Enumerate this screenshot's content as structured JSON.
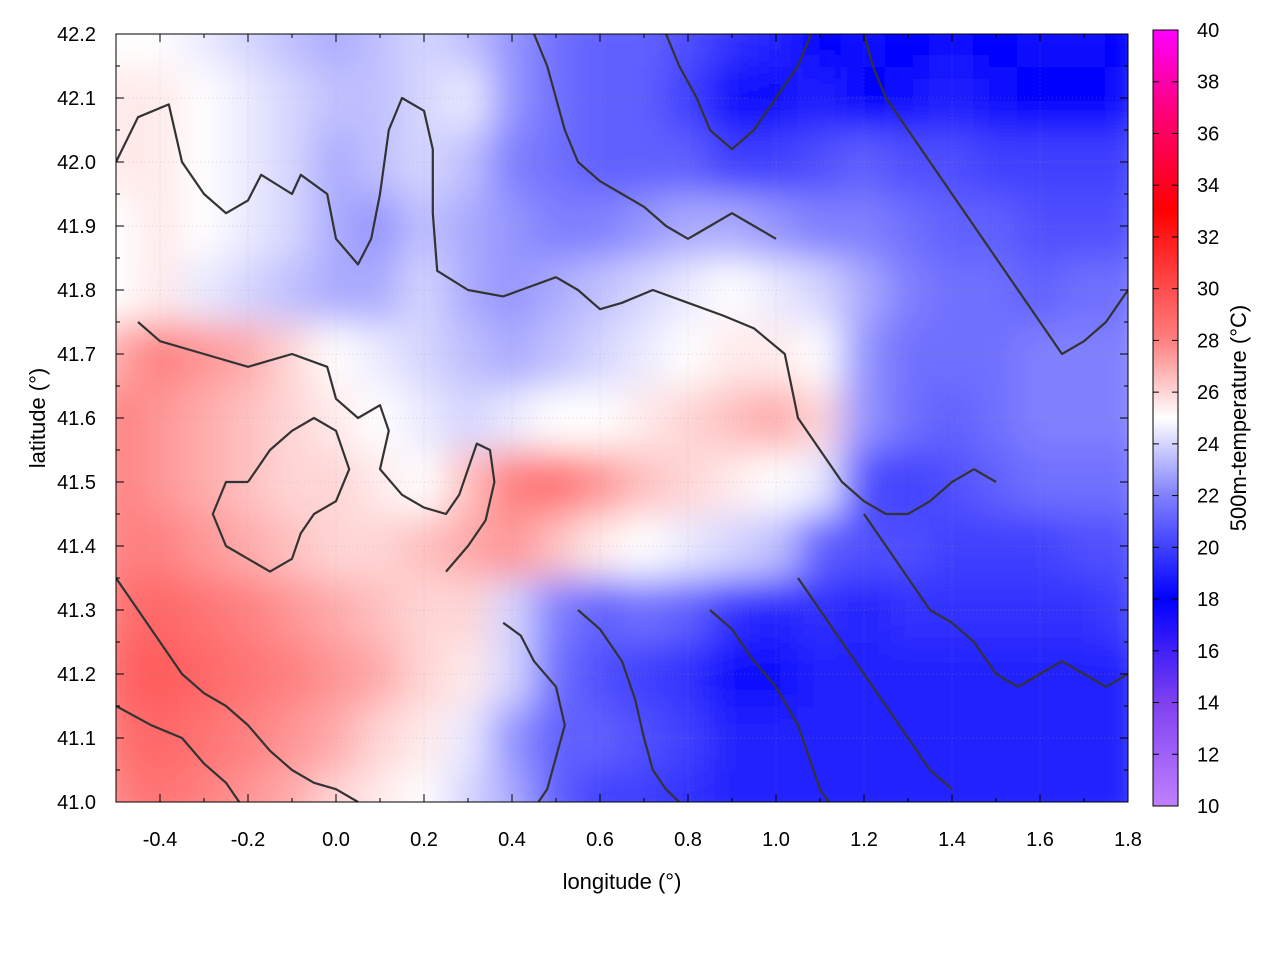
{
  "chart_data": {
    "type": "heatmap",
    "title": "",
    "xlabel": "longitude (°)",
    "ylabel": "latitude (°)",
    "colorbar_label": "500m-temperature (°C)",
    "xlim": [
      -0.5,
      1.8
    ],
    "ylim": [
      41.0,
      42.2
    ],
    "xticks": [
      "-0.4",
      "-0.2",
      "0.0",
      "0.2",
      "0.4",
      "0.6",
      "0.8",
      "1.0",
      "1.2",
      "1.4",
      "1.6",
      "1.8"
    ],
    "yticks": [
      "41.0",
      "41.1",
      "41.2",
      "41.3",
      "41.4",
      "41.5",
      "41.6",
      "41.7",
      "41.8",
      "41.9",
      "42.0",
      "42.1",
      "42.2"
    ],
    "cbrange": [
      10,
      40
    ],
    "cbticks": [
      "10",
      "12",
      "14",
      "16",
      "18",
      "20",
      "22",
      "24",
      "26",
      "28",
      "30",
      "32",
      "34",
      "36",
      "38",
      "40"
    ],
    "colormap": [
      {
        "value": 10,
        "color": "#c080ff"
      },
      {
        "value": 14,
        "color": "#8040f0"
      },
      {
        "value": 18,
        "color": "#0000ff"
      },
      {
        "value": 22,
        "color": "#8080ff"
      },
      {
        "value": 25,
        "color": "#ffffff"
      },
      {
        "value": 28,
        "color": "#ff8080"
      },
      {
        "value": 33,
        "color": "#ff0000"
      },
      {
        "value": 37,
        "color": "#ff0080"
      },
      {
        "value": 40,
        "color": "#ff00ff"
      }
    ],
    "temperature_field": {
      "x": [
        -0.5,
        -0.4,
        -0.3,
        -0.2,
        -0.1,
        0.0,
        0.1,
        0.2,
        0.3,
        0.4,
        0.5,
        0.6,
        0.7,
        0.8,
        0.9,
        1.0,
        1.1,
        1.2,
        1.3,
        1.4,
        1.5,
        1.6,
        1.7,
        1.8
      ],
      "y": [
        41.0,
        41.1,
        41.2,
        41.3,
        41.4,
        41.5,
        41.6,
        41.7,
        41.8,
        41.9,
        42.0,
        42.1,
        42.2
      ],
      "values": [
        [
          28.0,
          28.5,
          28.0,
          27.5,
          27.0,
          26.0,
          25.5,
          25.0,
          24.0,
          23.0,
          21.0,
          20.0,
          20.0,
          19.5,
          19.0,
          19.0,
          19.0,
          19.0,
          19.0,
          19.0,
          19.0,
          19.0,
          19.0,
          19.0
        ],
        [
          28.5,
          29.0,
          28.5,
          28.0,
          27.5,
          27.0,
          26.0,
          25.5,
          24.5,
          22.5,
          21.0,
          21.0,
          20.5,
          20.0,
          19.0,
          19.0,
          19.0,
          19.0,
          19.0,
          19.0,
          19.0,
          19.0,
          19.0,
          19.0
        ],
        [
          29.0,
          29.5,
          29.0,
          28.5,
          28.0,
          27.5,
          27.0,
          26.0,
          25.5,
          24.0,
          21.5,
          20.5,
          20.0,
          19.5,
          18.5,
          18.5,
          19.0,
          19.0,
          19.0,
          19.0,
          19.0,
          19.0,
          19.0,
          19.0
        ],
        [
          28.5,
          29.0,
          28.5,
          28.0,
          27.5,
          27.0,
          26.5,
          26.0,
          26.0,
          24.0,
          22.0,
          21.0,
          21.5,
          21.0,
          19.5,
          19.0,
          19.5,
          19.0,
          19.5,
          19.5,
          19.5,
          19.5,
          19.5,
          20.0
        ],
        [
          28.0,
          28.0,
          27.5,
          27.0,
          26.5,
          26.0,
          26.0,
          26.5,
          27.0,
          27.5,
          26.5,
          25.5,
          25.0,
          24.5,
          24.0,
          23.5,
          21.0,
          20.5,
          20.5,
          20.0,
          20.0,
          20.0,
          20.5,
          20.5
        ],
        [
          28.0,
          27.5,
          27.0,
          26.5,
          26.0,
          26.0,
          25.5,
          25.0,
          26.5,
          28.0,
          28.5,
          27.5,
          26.5,
          26.0,
          25.5,
          25.0,
          24.5,
          20.5,
          20.0,
          20.5,
          21.0,
          21.5,
          21.5,
          21.5
        ],
        [
          28.0,
          27.5,
          27.0,
          26.5,
          26.0,
          25.5,
          25.0,
          24.5,
          24.0,
          24.5,
          25.0,
          25.0,
          25.5,
          26.0,
          26.5,
          27.0,
          26.0,
          22.5,
          21.5,
          21.0,
          21.5,
          22.0,
          22.0,
          22.0
        ],
        [
          27.0,
          28.0,
          27.5,
          27.0,
          26.0,
          25.0,
          24.5,
          24.0,
          23.5,
          23.0,
          23.5,
          24.0,
          24.5,
          25.0,
          25.5,
          25.5,
          25.0,
          22.5,
          21.5,
          21.5,
          21.5,
          22.0,
          22.0,
          22.0
        ],
        [
          25.0,
          25.5,
          24.5,
          24.0,
          23.5,
          23.0,
          23.0,
          24.0,
          23.0,
          22.5,
          23.0,
          23.5,
          24.0,
          24.5,
          25.0,
          24.5,
          24.0,
          23.0,
          22.0,
          21.5,
          21.5,
          21.0,
          21.5,
          21.5
        ],
        [
          25.0,
          25.5,
          25.0,
          24.5,
          24.0,
          23.0,
          22.5,
          23.5,
          23.0,
          22.5,
          22.0,
          22.0,
          22.5,
          23.0,
          23.0,
          22.5,
          22.0,
          22.0,
          21.5,
          21.0,
          21.0,
          20.5,
          20.5,
          20.5
        ],
        [
          25.5,
          25.5,
          25.0,
          24.5,
          24.0,
          23.0,
          23.5,
          24.0,
          23.5,
          22.0,
          21.5,
          21.0,
          21.0,
          21.0,
          20.0,
          20.0,
          20.5,
          21.0,
          20.5,
          20.5,
          20.0,
          20.0,
          20.0,
          20.0
        ],
        [
          25.5,
          25.5,
          25.0,
          24.5,
          24.0,
          23.5,
          23.5,
          24.0,
          24.5,
          22.5,
          21.5,
          21.0,
          21.0,
          20.0,
          18.5,
          18.5,
          19.0,
          18.0,
          18.5,
          19.0,
          18.5,
          18.0,
          18.0,
          18.5
        ],
        [
          25.0,
          25.0,
          24.5,
          24.0,
          23.5,
          23.0,
          23.5,
          24.0,
          23.5,
          22.5,
          21.5,
          21.0,
          21.0,
          20.5,
          19.5,
          19.0,
          18.0,
          17.5,
          18.0,
          18.5,
          18.0,
          17.5,
          17.5,
          18.0
        ]
      ]
    },
    "contour_lines": [
      [
        [
          -0.5,
          42.0
        ],
        [
          -0.45,
          42.07
        ],
        [
          -0.38,
          42.09
        ],
        [
          -0.35,
          42.0
        ],
        [
          -0.3,
          41.95
        ],
        [
          -0.25,
          41.92
        ],
        [
          -0.2,
          41.94
        ],
        [
          -0.17,
          41.98
        ],
        [
          -0.1,
          41.95
        ],
        [
          -0.08,
          41.98
        ],
        [
          -0.02,
          41.95
        ],
        [
          0.0,
          41.88
        ],
        [
          0.05,
          41.84
        ],
        [
          0.08,
          41.88
        ],
        [
          0.1,
          41.95
        ],
        [
          0.12,
          42.05
        ],
        [
          0.15,
          42.1
        ],
        [
          0.2,
          42.08
        ],
        [
          0.22,
          42.02
        ],
        [
          0.22,
          41.92
        ],
        [
          0.23,
          41.83
        ],
        [
          0.3,
          41.8
        ],
        [
          0.38,
          41.79
        ],
        [
          0.42,
          41.8
        ],
        [
          0.5,
          41.82
        ],
        [
          0.55,
          41.8
        ],
        [
          0.6,
          41.77
        ],
        [
          0.65,
          41.78
        ],
        [
          0.72,
          41.8
        ],
        [
          0.8,
          41.78
        ],
        [
          0.88,
          41.76
        ],
        [
          0.95,
          41.74
        ],
        [
          1.02,
          41.7
        ],
        [
          1.05,
          41.6
        ],
        [
          1.1,
          41.55
        ],
        [
          1.15,
          41.5
        ],
        [
          1.2,
          41.47
        ],
        [
          1.25,
          41.45
        ],
        [
          1.3,
          41.45
        ],
        [
          1.35,
          41.47
        ],
        [
          1.4,
          41.5
        ],
        [
          1.45,
          41.52
        ],
        [
          1.5,
          41.5
        ]
      ],
      [
        [
          -0.45,
          41.75
        ],
        [
          -0.4,
          41.72
        ],
        [
          -0.3,
          41.7
        ],
        [
          -0.2,
          41.68
        ],
        [
          -0.1,
          41.7
        ],
        [
          -0.02,
          41.68
        ],
        [
          0.0,
          41.63
        ],
        [
          0.05,
          41.6
        ],
        [
          0.1,
          41.62
        ],
        [
          0.12,
          41.58
        ],
        [
          0.1,
          41.52
        ],
        [
          0.15,
          41.48
        ],
        [
          0.2,
          41.46
        ],
        [
          0.25,
          41.45
        ],
        [
          0.28,
          41.48
        ],
        [
          0.3,
          41.52
        ],
        [
          0.32,
          41.56
        ],
        [
          0.35,
          41.55
        ],
        [
          0.36,
          41.5
        ],
        [
          0.34,
          41.44
        ],
        [
          0.3,
          41.4
        ],
        [
          0.25,
          41.36
        ]
      ],
      [
        [
          -0.2,
          41.5
        ],
        [
          -0.15,
          41.55
        ],
        [
          -0.1,
          41.58
        ],
        [
          -0.05,
          41.6
        ],
        [
          0.0,
          41.58
        ],
        [
          0.03,
          41.52
        ],
        [
          0.0,
          41.47
        ],
        [
          -0.05,
          41.45
        ],
        [
          -0.08,
          41.42
        ],
        [
          -0.1,
          41.38
        ],
        [
          -0.15,
          41.36
        ],
        [
          -0.2,
          41.38
        ],
        [
          -0.25,
          41.4
        ],
        [
          -0.28,
          41.45
        ],
        [
          -0.25,
          41.5
        ],
        [
          -0.2,
          41.5
        ]
      ],
      [
        [
          -0.5,
          41.35
        ],
        [
          -0.45,
          41.3
        ],
        [
          -0.4,
          41.25
        ],
        [
          -0.35,
          41.2
        ],
        [
          -0.3,
          41.17
        ],
        [
          -0.25,
          41.15
        ],
        [
          -0.2,
          41.12
        ],
        [
          -0.15,
          41.08
        ],
        [
          -0.1,
          41.05
        ],
        [
          -0.05,
          41.03
        ],
        [
          0.0,
          41.02
        ],
        [
          0.05,
          41.0
        ]
      ],
      [
        [
          -0.5,
          41.15
        ],
        [
          -0.42,
          41.12
        ],
        [
          -0.35,
          41.1
        ],
        [
          -0.3,
          41.06
        ],
        [
          -0.25,
          41.03
        ],
        [
          -0.22,
          41.0
        ]
      ],
      [
        [
          0.38,
          41.28
        ],
        [
          0.42,
          41.26
        ],
        [
          0.45,
          41.22
        ],
        [
          0.5,
          41.18
        ],
        [
          0.52,
          41.12
        ],
        [
          0.5,
          41.07
        ],
        [
          0.48,
          41.02
        ],
        [
          0.46,
          41.0
        ]
      ],
      [
        [
          0.55,
          41.3
        ],
        [
          0.6,
          41.27
        ],
        [
          0.65,
          41.22
        ],
        [
          0.68,
          41.16
        ],
        [
          0.7,
          41.1
        ],
        [
          0.72,
          41.05
        ],
        [
          0.75,
          41.02
        ],
        [
          0.78,
          41.0
        ]
      ],
      [
        [
          0.85,
          41.3
        ],
        [
          0.9,
          41.27
        ],
        [
          0.95,
          41.22
        ],
        [
          1.0,
          41.18
        ],
        [
          1.05,
          41.12
        ],
        [
          1.08,
          41.06
        ],
        [
          1.1,
          41.02
        ],
        [
          1.12,
          41.0
        ]
      ],
      [
        [
          1.05,
          41.35
        ],
        [
          1.1,
          41.3
        ],
        [
          1.15,
          41.25
        ],
        [
          1.2,
          41.2
        ],
        [
          1.25,
          41.15
        ],
        [
          1.3,
          41.1
        ],
        [
          1.35,
          41.05
        ],
        [
          1.4,
          41.02
        ]
      ],
      [
        [
          1.2,
          41.45
        ],
        [
          1.25,
          41.4
        ],
        [
          1.3,
          41.35
        ],
        [
          1.35,
          41.3
        ],
        [
          1.4,
          41.28
        ],
        [
          1.45,
          41.25
        ],
        [
          1.5,
          41.2
        ],
        [
          1.55,
          41.18
        ],
        [
          1.6,
          41.2
        ],
        [
          1.65,
          41.22
        ],
        [
          1.7,
          41.2
        ],
        [
          1.75,
          41.18
        ],
        [
          1.8,
          41.2
        ]
      ],
      [
        [
          0.75,
          42.2
        ],
        [
          0.78,
          42.15
        ],
        [
          0.82,
          42.1
        ],
        [
          0.85,
          42.05
        ],
        [
          0.9,
          42.02
        ],
        [
          0.95,
          42.05
        ],
        [
          1.0,
          42.1
        ],
        [
          1.05,
          42.15
        ],
        [
          1.08,
          42.2
        ]
      ],
      [
        [
          1.2,
          42.2
        ],
        [
          1.22,
          42.15
        ],
        [
          1.25,
          42.1
        ],
        [
          1.3,
          42.05
        ],
        [
          1.35,
          42.0
        ],
        [
          1.4,
          41.95
        ],
        [
          1.45,
          41.9
        ],
        [
          1.5,
          41.85
        ],
        [
          1.55,
          41.8
        ],
        [
          1.6,
          41.75
        ],
        [
          1.65,
          41.7
        ],
        [
          1.7,
          41.72
        ],
        [
          1.75,
          41.75
        ],
        [
          1.8,
          41.8
        ]
      ],
      [
        [
          0.45,
          42.2
        ],
        [
          0.48,
          42.15
        ],
        [
          0.5,
          42.1
        ],
        [
          0.52,
          42.05
        ],
        [
          0.55,
          42.0
        ],
        [
          0.6,
          41.97
        ],
        [
          0.65,
          41.95
        ],
        [
          0.7,
          41.93
        ],
        [
          0.75,
          41.9
        ],
        [
          0.8,
          41.88
        ],
        [
          0.85,
          41.9
        ],
        [
          0.9,
          41.92
        ],
        [
          0.95,
          41.9
        ],
        [
          1.0,
          41.88
        ]
      ]
    ]
  }
}
